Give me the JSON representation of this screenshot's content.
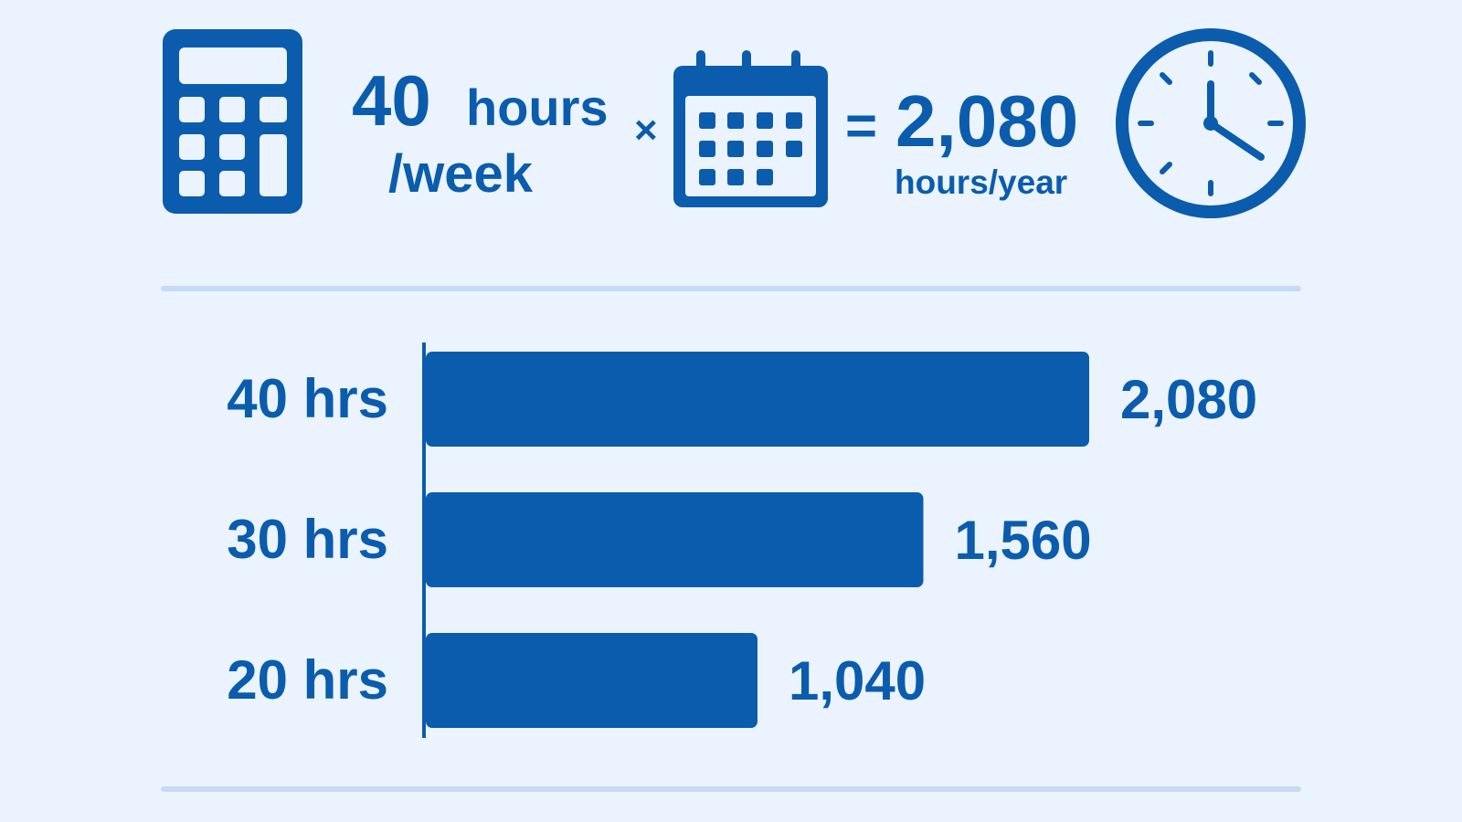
{
  "header": {
    "rate_number": "40",
    "rate_unit": "hours",
    "rate_period": "/week",
    "times": "×",
    "equals": "=",
    "total": "2,080",
    "total_unit": "hours/year"
  },
  "chart_data": {
    "type": "bar",
    "orientation": "horizontal",
    "categories": [
      "40 hrs",
      "30 hrs",
      "20 hrs"
    ],
    "values": [
      2080,
      1560,
      1040
    ],
    "value_labels": [
      "2,080",
      "1,560",
      "1,040"
    ],
    "color": "#0b5cad"
  }
}
